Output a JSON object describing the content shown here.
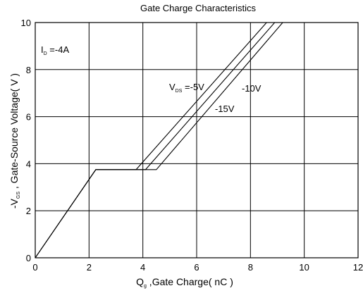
{
  "chart_data": {
    "type": "line",
    "title": "Gate Charge Characteristics",
    "xlabel": {
      "main": "Q",
      "sub": "g",
      "rest": " ,Gate Charge( nC )"
    },
    "ylabel": {
      "pre": "-V",
      "sub": "GS",
      "rest": " , Gate-Source Voltage( V )"
    },
    "xlim": [
      0,
      12
    ],
    "ylim": [
      0,
      10
    ],
    "x_ticks": [
      "0",
      "2",
      "4",
      "6",
      "8",
      "10",
      "12"
    ],
    "y_ticks": [
      "0",
      "2",
      "4",
      "6",
      "8",
      "10"
    ],
    "grid": true,
    "condition": {
      "main": "I",
      "sub": "D",
      "rest": " =-4A"
    },
    "annotations": [
      {
        "main": "V",
        "sub": "DS",
        "rest": " =-5V"
      },
      {
        "main": "-10V"
      },
      {
        "main": "-15V"
      }
    ],
    "series": [
      {
        "name": "-5V",
        "x": [
          0,
          2.25,
          3.75,
          8.6
        ],
        "y": [
          0,
          3.75,
          3.75,
          10
        ]
      },
      {
        "name": "-10V",
        "x": [
          0,
          2.25,
          4.1,
          8.9
        ],
        "y": [
          0,
          3.75,
          3.75,
          10
        ]
      },
      {
        "name": "-15V",
        "x": [
          0,
          2.25,
          4.5,
          9.2
        ],
        "y": [
          0,
          3.75,
          3.75,
          10
        ]
      }
    ]
  }
}
